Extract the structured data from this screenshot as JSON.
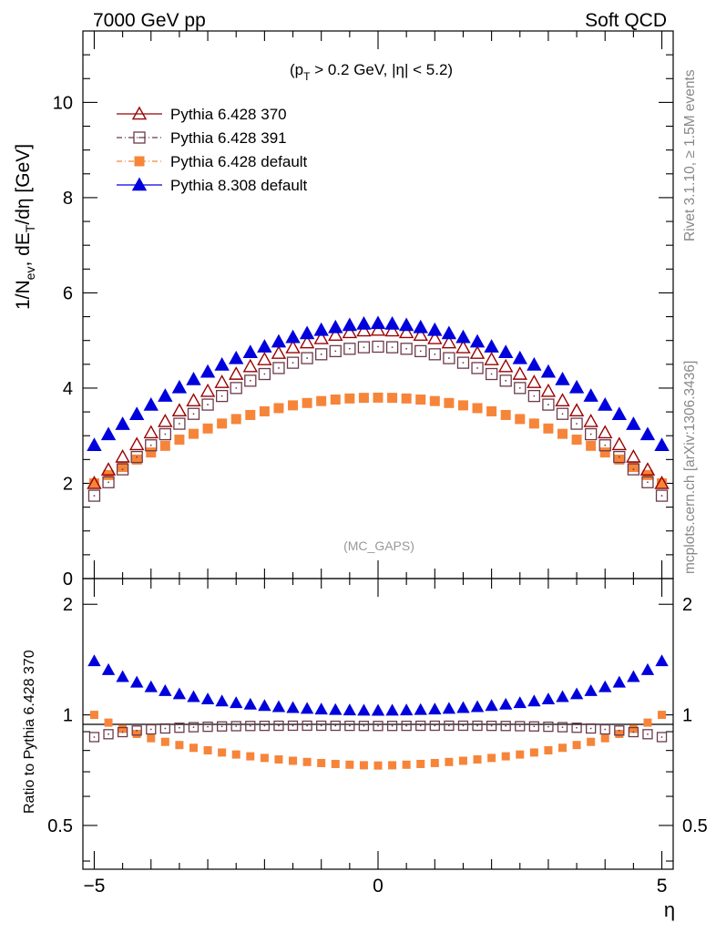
{
  "header": {
    "left": "7000 GeV pp",
    "right": "Soft QCD",
    "side_top": "Rivet 3.1.10, ≥ 1.5M events",
    "side_bottom": "mcplots.cern.ch [arXiv:1306.3436]"
  },
  "main": {
    "cuts_prefix": "(p",
    "cuts_sub": "T",
    "cuts_suffix": " > 0.2 GeV, |η| < 5.2)",
    "watermark": "(MC_GAPS)",
    "ylabel_prefix": "1/N",
    "ylabel_sub1": "ev",
    "ylabel_mid": ", dE",
    "ylabel_sub2": "T",
    "ylabel_suffix": "/dη [GeV]",
    "y_ticks": [
      "0",
      "2",
      "4",
      "6",
      "8",
      "10"
    ]
  },
  "ratio": {
    "ylabel": "Ratio to Pythia 6.428 370",
    "left_ticks": [
      "0.5",
      "1",
      "2"
    ],
    "right_ticks": [
      "0.5",
      "1",
      "2"
    ]
  },
  "xaxis": {
    "label": "η",
    "ticks": [
      "−5",
      "0",
      "5"
    ]
  },
  "legend": [
    {
      "name": "Pythia 6.428 370",
      "color": "#9a0000",
      "marker": "open-triangle",
      "dash": ""
    },
    {
      "name": "Pythia 6.428 391",
      "color": "#6b3a4a",
      "marker": "open-square",
      "dash": "6,3,1,3"
    },
    {
      "name": "Pythia 6.428 default",
      "color": "#f6853a",
      "marker": "filled-square",
      "dash": "6,3,1,3"
    },
    {
      "name": "Pythia 8.308 default",
      "color": "#0000dd",
      "marker": "filled-triangle",
      "dash": ""
    }
  ],
  "chart_data": {
    "type": "scatter",
    "xlabel": "η",
    "x_range": [
      -5.2,
      5.2
    ],
    "main_panel": {
      "ylabel": "1/N_ev dE_T/dη [GeV]",
      "ylim": [
        0,
        11.5
      ],
      "y_log": false
    },
    "ratio_panel": {
      "ylabel": "Ratio to Pythia 6.428 370",
      "ylim": [
        0.38,
        2.35
      ],
      "y_log": true
    },
    "x_bin_centers_rule": "41 bins of width 0.25 centred at -5.0 ... 5.0 (eta = -5 + 0.25*i)",
    "series": [
      {
        "name": "Pythia 6.428 370",
        "peak": 5.22,
        "edge": 2.0,
        "shape_power": 1.8
      },
      {
        "name": "Pythia 6.428 391",
        "peak": 4.87,
        "edge": 1.74,
        "shape_power": 1.85
      },
      {
        "name": "Pythia 6.428 default",
        "peak": 3.8,
        "edge": 2.0,
        "shape_power": 2.0
      },
      {
        "name": "Pythia 8.308 default",
        "peak": 5.36,
        "edge": 2.8,
        "shape_power": 1.8
      }
    ],
    "legend_position": "top-left",
    "grid": false
  }
}
